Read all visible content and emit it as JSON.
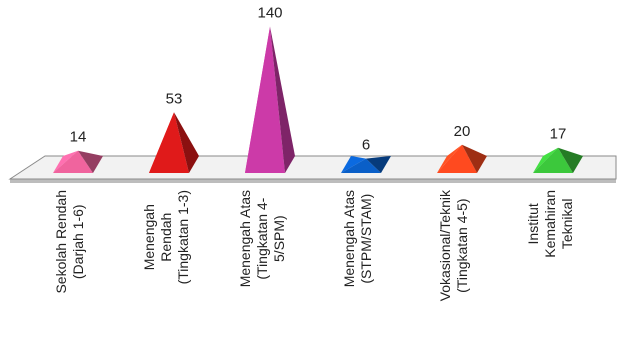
{
  "chart_data": {
    "type": "bar",
    "shape": "pyramid",
    "title": "",
    "xlabel": "",
    "ylabel": "",
    "categories": [
      [
        "Sekolah Rendah",
        "(Darjah 1-6)"
      ],
      [
        "Menengah",
        "Rendah",
        "(Tingkatan 1-3)"
      ],
      [
        "Menengah Atas",
        "(Tingkatan 4-",
        "5/SPM)"
      ],
      [
        "Menengah Atas",
        "(STPM/STAM)"
      ],
      [
        "Vokasional/Teknik",
        "(Tingkatan 4-5)"
      ],
      [
        "Institut",
        "Kemahiran",
        "Teknikal"
      ]
    ],
    "values": [
      14,
      53,
      140,
      6,
      20,
      17
    ],
    "colors": [
      "#f0649e",
      "#e01a1a",
      "#cc3aa8",
      "#0a5fc8",
      "#ff4a1f",
      "#3cc83c"
    ],
    "ylim": [
      0,
      140
    ],
    "grid": false,
    "legend": "none"
  }
}
